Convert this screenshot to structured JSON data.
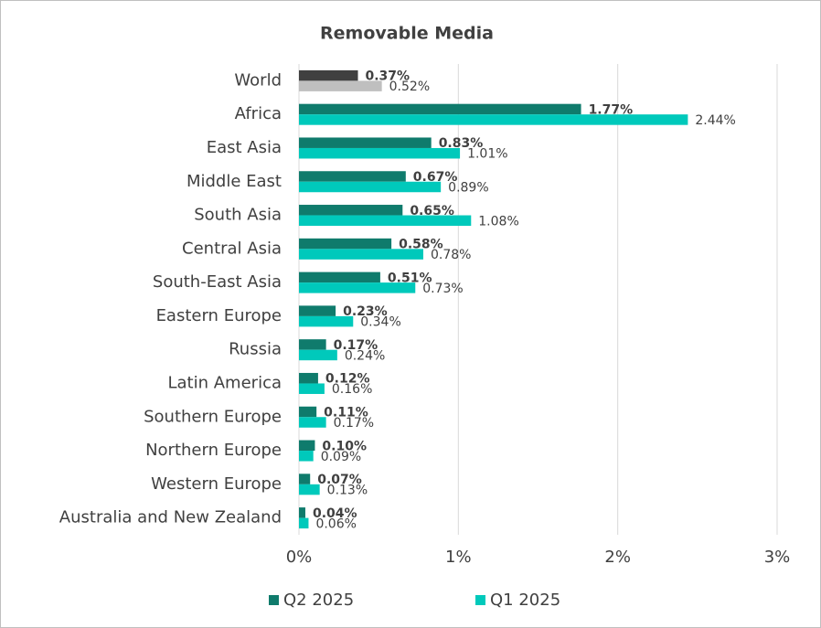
{
  "chart_data": {
    "type": "bar",
    "orientation": "horizontal",
    "title": "Removable Media",
    "categories": [
      "World",
      "Africa",
      "East Asia",
      "Middle East",
      "South Asia",
      "Central Asia",
      "South-East Asia",
      "Eastern Europe",
      "Russia",
      "Latin America",
      "Southern Europe",
      "Northern Europe",
      "Western Europe",
      "Australia and New Zealand"
    ],
    "series": [
      {
        "name": "Q2 2025",
        "color": "#0f7b6c",
        "colors": [
          "#404040",
          "#0f7b6c",
          "#0f7b6c",
          "#0f7b6c",
          "#0f7b6c",
          "#0f7b6c",
          "#0f7b6c",
          "#0f7b6c",
          "#0f7b6c",
          "#0f7b6c",
          "#0f7b6c",
          "#0f7b6c",
          "#0f7b6c",
          "#0f7b6c"
        ],
        "values": [
          0.37,
          1.77,
          0.83,
          0.67,
          0.65,
          0.58,
          0.51,
          0.23,
          0.17,
          0.12,
          0.11,
          0.1,
          0.07,
          0.04
        ],
        "value_labels": [
          "0.37%",
          "1.77%",
          "0.83%",
          "0.67%",
          "0.65%",
          "0.58%",
          "0.51%",
          "0.23%",
          "0.17%",
          "0.12%",
          "0.11%",
          "0.10%",
          "0.07%",
          "0.04%"
        ]
      },
      {
        "name": "Q1 2025",
        "color": "#00c9bb",
        "colors": [
          "#bfbfbf",
          "#00c9bb",
          "#00c9bb",
          "#00c9bb",
          "#00c9bb",
          "#00c9bb",
          "#00c9bb",
          "#00c9bb",
          "#00c9bb",
          "#00c9bb",
          "#00c9bb",
          "#00c9bb",
          "#00c9bb",
          "#00c9bb"
        ],
        "values": [
          0.52,
          2.44,
          1.01,
          0.89,
          1.08,
          0.78,
          0.73,
          0.34,
          0.24,
          0.16,
          0.17,
          0.09,
          0.13,
          0.06
        ],
        "value_labels": [
          "0.52%",
          "2.44%",
          "1.01%",
          "0.89%",
          "1.08%",
          "0.78%",
          "0.73%",
          "0.34%",
          "0.24%",
          "0.16%",
          "0.17%",
          "0.09%",
          "0.13%",
          "0.06%"
        ]
      }
    ],
    "xlim": [
      0,
      3
    ],
    "xticks": [
      {
        "value": 0,
        "label": "0%"
      },
      {
        "value": 1,
        "label": "1%"
      },
      {
        "value": 2,
        "label": "2%"
      },
      {
        "value": 3,
        "label": "3%"
      }
    ],
    "grid": true,
    "legend": "bottom"
  }
}
